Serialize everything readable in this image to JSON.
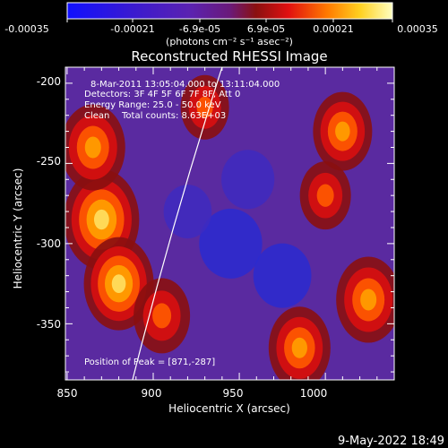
{
  "chart_data": {
    "type": "heatmap",
    "title": "Reconstructed RHESSI Image",
    "xlabel": "Heliocentric X (arcsec)",
    "ylabel": "Heliocentric Y (arcsec)",
    "xlim": [
      849,
      1040
    ],
    "ylim": [
      -385,
      -190
    ],
    "x_ticks": [
      "850",
      "900",
      "950",
      "1000"
    ],
    "y_ticks": [
      "-200",
      "-250",
      "-300",
      "-350"
    ],
    "colorbar": {
      "range": [
        -0.00035,
        0.00035
      ],
      "tick_labels": [
        "-0.00035",
        "-0.00021",
        "-6.9e-05",
        "6.9e-05",
        "0.00021",
        "0.00035"
      ],
      "unit_label": "(photons cm⁻² s⁻¹ asec⁻²)"
    },
    "annotations": {
      "time": "8-Mar-2011 13:05:04.000 to 13:11:04.000",
      "detectors": "Detectors: 3F 4F 5F 6F 7F 8F, Att 0",
      "energy": "Energy Range: 25.0 - 50.0 keV",
      "method": "Clean",
      "counts": "Total counts: 8.63E+03",
      "peak": "Position of Peak = [871,-287]"
    },
    "limb_curve": [
      [
        888,
        -385
      ],
      [
        940,
        -190
      ]
    ],
    "bright_regions": [
      {
        "x": 870,
        "y": -285,
        "level": 0.8
      },
      {
        "x": 865,
        "y": -240,
        "level": 0.6
      },
      {
        "x": 880,
        "y": -325,
        "level": 0.7
      },
      {
        "x": 905,
        "y": -345,
        "level": 0.45
      },
      {
        "x": 1025,
        "y": -335,
        "level": 0.6
      },
      {
        "x": 1010,
        "y": -230,
        "level": 0.5
      },
      {
        "x": 985,
        "y": -365,
        "level": 0.55
      },
      {
        "x": 1000,
        "y": -270,
        "level": 0.35
      },
      {
        "x": 930,
        "y": -215,
        "level": 0.3
      }
    ],
    "dark_regions": [
      {
        "x": 945,
        "y": -300,
        "level": 0.9
      },
      {
        "x": 955,
        "y": -260,
        "level": 0.7
      },
      {
        "x": 975,
        "y": -320,
        "level": 0.8
      },
      {
        "x": 920,
        "y": -280,
        "level": 0.6
      }
    ]
  },
  "footer": {
    "timestamp": "9-May-2022 18:49"
  }
}
